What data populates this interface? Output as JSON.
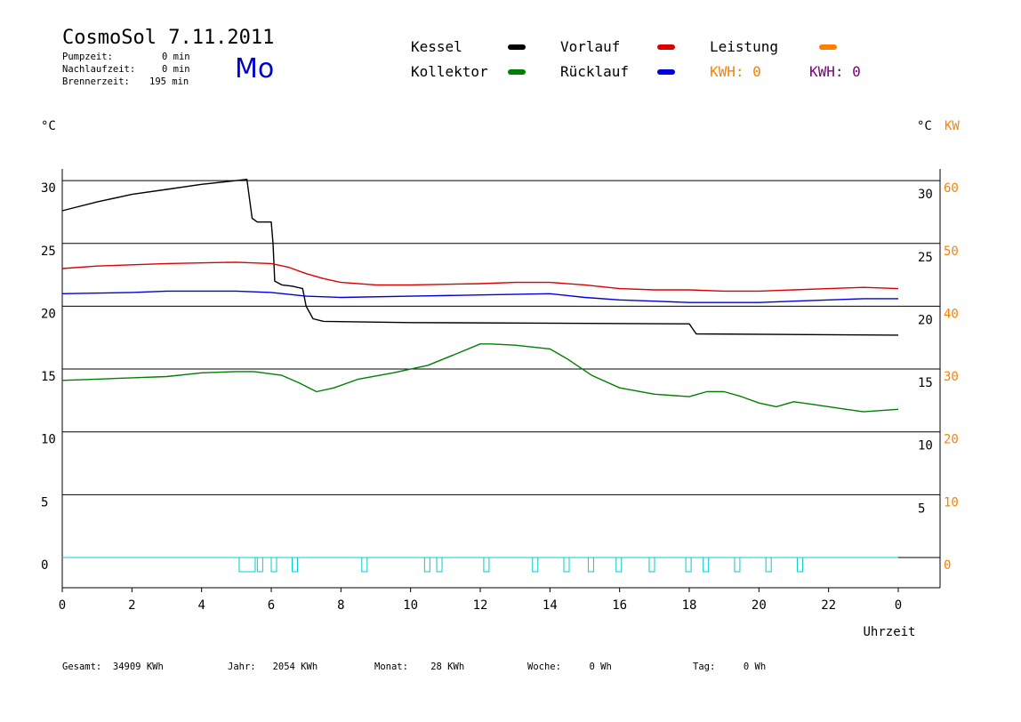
{
  "header": {
    "title": "CosmoSol 7.11.2011",
    "day": "Mo",
    "pumpzeit_label": "Pumpzeit:",
    "pumpzeit_value": "0 min",
    "nachlaufzeit_label": "Nachlaufzeit:",
    "nachlaufzeit_value": "0 min",
    "brennerzeit_label": "Brennerzeit:",
    "brennerzeit_value": "195 min"
  },
  "legend": {
    "kessel": "Kessel",
    "kollektor": "Kollektor",
    "vorlauf": "Vorlauf",
    "ruecklauf": "Rücklauf",
    "leistung": "Leistung",
    "kwh1": "KWH: 0",
    "kwh2": "KWH: 0"
  },
  "colors": {
    "kessel": "#000000",
    "kollektor": "#008000",
    "vorlauf": "#dd0000",
    "ruecklauf": "#0000dd",
    "leistung": "#ff8000",
    "kwh2": "#800080",
    "pump": "#00cccc",
    "grid": "#000000"
  },
  "footer": {
    "gesamt": "Gesamt:  34909 KWh",
    "jahr": "Jahr:   2054 KWh",
    "monat": "Monat:    28 KWh",
    "woche": "Woche:     0 Wh",
    "tag": "Tag:     0 Wh"
  },
  "chart_data": {
    "type": "line",
    "left_unit": "°C",
    "right_unit_c": "°C",
    "right_unit_kw": "KW",
    "xlabel": "Uhrzeit",
    "xlim": [
      0,
      24
    ],
    "ylim": [
      -2.5,
      31
    ],
    "x_ticks": [
      "0",
      "2",
      "4",
      "6",
      "8",
      "10",
      "12",
      "14",
      "16",
      "18",
      "20",
      "22",
      "0"
    ],
    "y_ticks_left": [
      30,
      25,
      20,
      15,
      10,
      5,
      0
    ],
    "y_ticks_right_c": [
      30,
      25,
      20,
      15,
      10,
      5
    ],
    "y_ticks_kw": [
      60,
      50,
      40,
      30,
      20,
      10,
      0
    ],
    "grid": true,
    "series": [
      {
        "name": "Kessel",
        "x": [
          0,
          1,
          2,
          3,
          4,
          5,
          5.3,
          5.45,
          5.6,
          6.0,
          6.05,
          6.1,
          6.3,
          6.6,
          6.9,
          7.0,
          7.2,
          7.5,
          10,
          18,
          18.2,
          24
        ],
        "y": [
          27.6,
          28.3,
          28.9,
          29.3,
          29.7,
          30.0,
          30.1,
          27.0,
          26.7,
          26.7,
          25.0,
          22.0,
          21.7,
          21.6,
          21.4,
          20.0,
          19.0,
          18.8,
          18.7,
          18.6,
          17.8,
          17.7
        ]
      },
      {
        "name": "Vorlauf",
        "x": [
          0,
          1,
          3,
          5,
          6,
          6.5,
          7,
          7.5,
          8,
          9,
          10,
          12,
          13,
          14,
          15,
          16,
          17,
          18,
          19,
          20,
          21,
          22,
          23,
          24
        ],
        "y": [
          23.0,
          23.2,
          23.4,
          23.5,
          23.4,
          23.1,
          22.6,
          22.2,
          21.9,
          21.7,
          21.7,
          21.8,
          21.9,
          21.9,
          21.7,
          21.4,
          21.3,
          21.3,
          21.2,
          21.2,
          21.3,
          21.4,
          21.5,
          21.4
        ]
      },
      {
        "name": "Rücklauf",
        "x": [
          0,
          2,
          3,
          5,
          6,
          7,
          8,
          10,
          12,
          14,
          15,
          16,
          17,
          18,
          19,
          20,
          21,
          22,
          23,
          24
        ],
        "y": [
          21.0,
          21.1,
          21.2,
          21.2,
          21.1,
          20.8,
          20.7,
          20.8,
          20.9,
          21.0,
          20.7,
          20.5,
          20.4,
          20.3,
          20.3,
          20.3,
          20.4,
          20.5,
          20.6,
          20.6
        ]
      },
      {
        "name": "Kollektor",
        "x": [
          0,
          1,
          2,
          3,
          4,
          5,
          5.5,
          6.3,
          6.8,
          7.3,
          7.8,
          8.5,
          9.5,
          10.5,
          11.3,
          12.0,
          12.3,
          13,
          14,
          14.5,
          15.2,
          16,
          17,
          18,
          18.5,
          19,
          19.5,
          20,
          20.5,
          21,
          21.5,
          22,
          22.5,
          23,
          23.5,
          24
        ],
        "y": [
          14.1,
          14.2,
          14.3,
          14.4,
          14.7,
          14.8,
          14.8,
          14.5,
          13.9,
          13.2,
          13.5,
          14.2,
          14.7,
          15.3,
          16.2,
          17.0,
          17.0,
          16.9,
          16.6,
          15.8,
          14.5,
          13.5,
          13.0,
          12.8,
          13.2,
          13.2,
          12.8,
          12.3,
          12.0,
          12.4,
          12.2,
          12.0,
          11.8,
          11.6,
          11.7,
          11.8
        ]
      },
      {
        "name": "Pumpe",
        "y": 0,
        "pulses_x": [
          5.08,
          5.6,
          6.0,
          6.6,
          8.6,
          10.4,
          10.75,
          12.1,
          13.5,
          14.4,
          15.1,
          15.9,
          16.85,
          17.9,
          18.4,
          19.3,
          20.2,
          21.1
        ]
      }
    ]
  }
}
